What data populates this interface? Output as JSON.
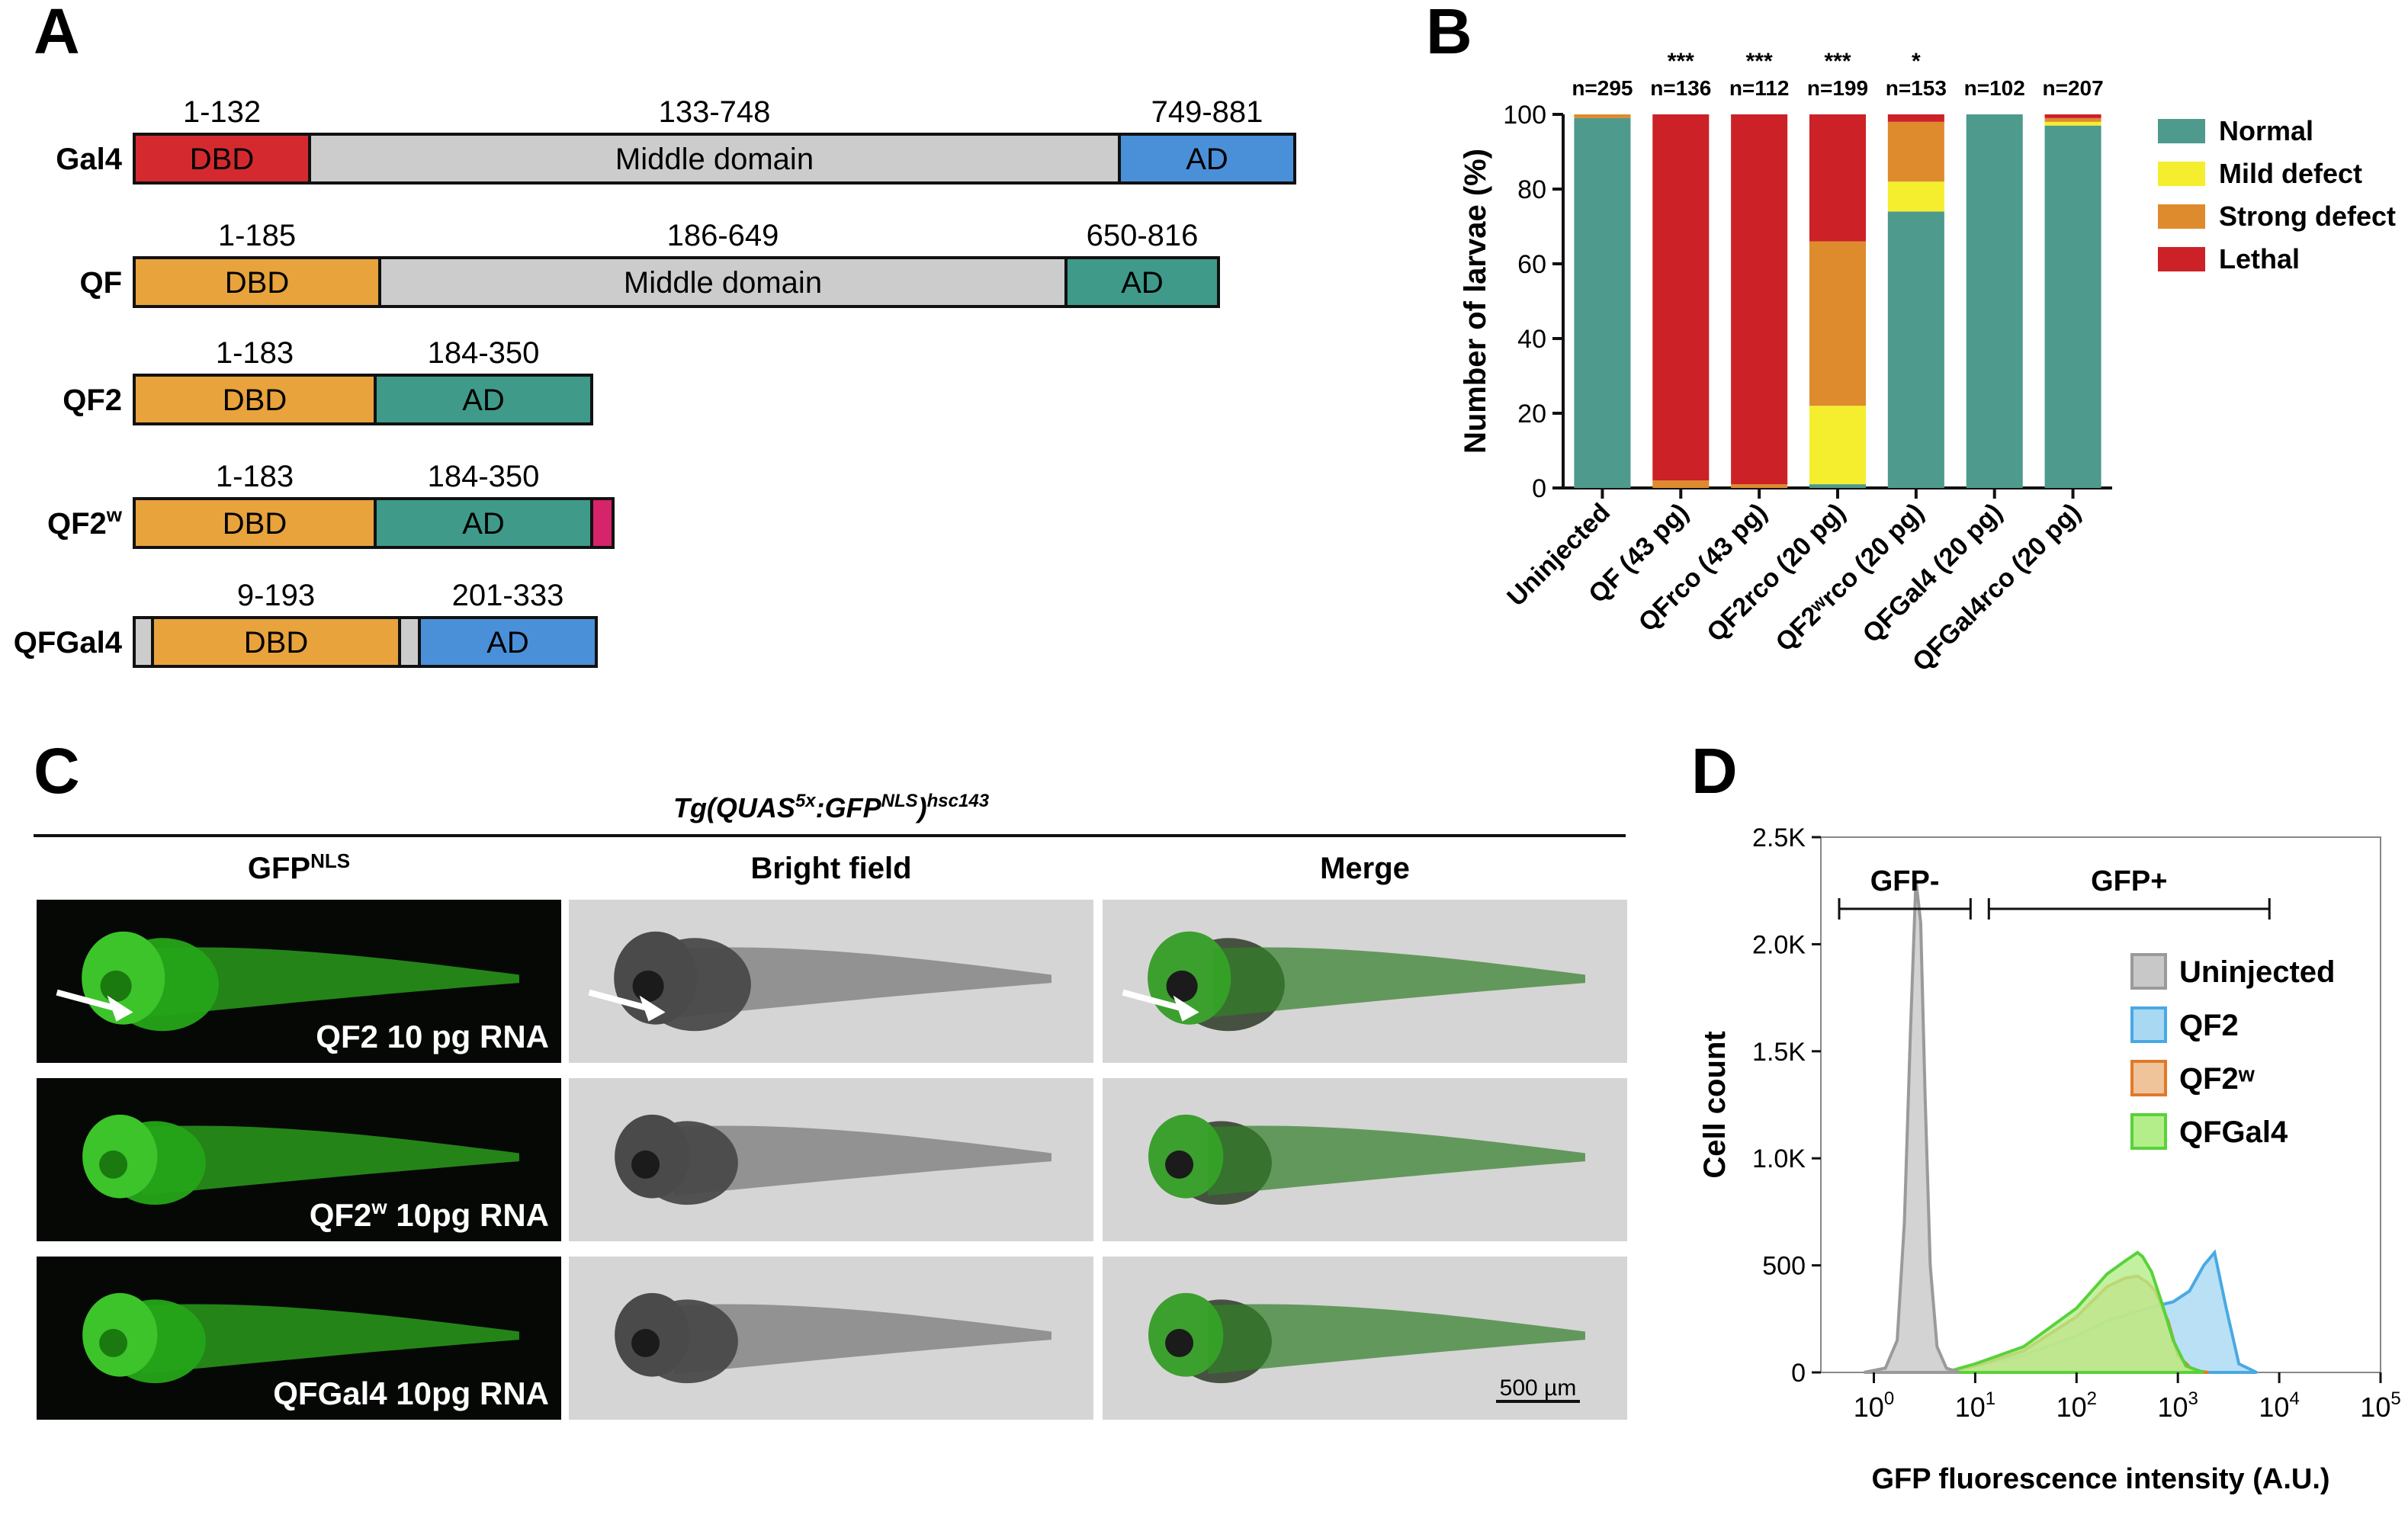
{
  "panels": {
    "a": "A",
    "b": "B",
    "c": "C",
    "d": "D"
  },
  "constructs": [
    {
      "name": "Gal4",
      "sup": "",
      "segments": [
        {
          "label": "DBD",
          "range": "1-132",
          "color": "#d42a2f"
        },
        {
          "label": "Middle domain",
          "range": "133-748",
          "color": "#cccccc"
        },
        {
          "label": "AD",
          "range": "749-881",
          "color": "#4a90d9"
        }
      ]
    },
    {
      "name": "QF",
      "sup": "",
      "segments": [
        {
          "label": "DBD",
          "range": "1-185",
          "color": "#e8a33d"
        },
        {
          "label": "Middle domain",
          "range": "186-649",
          "color": "#cccccc"
        },
        {
          "label": "AD",
          "range": "650-816",
          "color": "#3f9a8a"
        }
      ]
    },
    {
      "name": "QF2",
      "sup": "",
      "segments": [
        {
          "label": "DBD",
          "range": "1-183",
          "color": "#e8a33d"
        },
        {
          "label": "AD",
          "range": "184-350",
          "color": "#3f9a8a"
        }
      ]
    },
    {
      "name": "QF2",
      "sup": "w",
      "segments": [
        {
          "label": "DBD",
          "range": "1-183",
          "color": "#e8a33d"
        },
        {
          "label": "AD",
          "range": "184-350",
          "color": "#3f9a8a"
        },
        {
          "label": "",
          "range": "",
          "color": "#d6246a"
        }
      ]
    },
    {
      "name": "QFGal4",
      "sup": "",
      "segments": [
        {
          "label": "",
          "range": "",
          "color": "#cccccc"
        },
        {
          "label": "DBD",
          "range": "9-193",
          "color": "#e8a33d"
        },
        {
          "label": "",
          "range": "",
          "color": "#cccccc"
        },
        {
          "label": "AD",
          "range": "201-333",
          "color": "#4a90d9"
        }
      ]
    }
  ],
  "chart_data": [
    {
      "type": "bar",
      "stacked": true,
      "ylabel": "Number of larvae (%)",
      "ylim": [
        0,
        100
      ],
      "yticks": [
        0,
        20,
        40,
        60,
        80,
        100
      ],
      "categories": [
        "Uninjected",
        "QF (43 pg)",
        "QFrco (43 pg)",
        "QF2rco (20 pg)",
        "QF2ʷrco (20 pg)",
        "QFGal4 (20 pg)",
        "QFGal4rco (20 pg)"
      ],
      "n_labels": [
        "n=295",
        "n=136",
        "n=112",
        "n=199",
        "n=153",
        "n=102",
        "n=207"
      ],
      "significance": [
        "",
        "***",
        "***",
        "***",
        "*",
        "",
        ""
      ],
      "series": [
        {
          "name": "Normal",
          "color": "#4e9a8c",
          "values": [
            99,
            0,
            0,
            1,
            74,
            100,
            97
          ]
        },
        {
          "name": "Mild defect",
          "color": "#f5ee2e",
          "values": [
            0,
            0,
            0,
            21,
            8,
            0,
            1
          ]
        },
        {
          "name": "Strong defect",
          "color": "#de8b2e",
          "values": [
            1,
            2,
            1,
            44,
            16,
            0,
            1
          ]
        },
        {
          "name": "Lethal",
          "color": "#cc2127",
          "values": [
            0,
            98,
            99,
            34,
            2,
            0,
            1
          ]
        }
      ],
      "legend": "right"
    },
    {
      "type": "area",
      "xlabel": "GFP fluorescence intensity (A.U.)",
      "ylabel": "Cell count",
      "xscale": "log",
      "xlim": [
        0.3,
        100000
      ],
      "ylim": [
        0,
        2500
      ],
      "yticks": [
        "0",
        "500",
        "1.0K",
        "1.5K",
        "2.0K",
        "2.5K"
      ],
      "ytick_values": [
        0,
        500,
        1000,
        1500,
        2000,
        2500
      ],
      "gates": [
        {
          "label": "GFP-",
          "range": [
            0.3,
            9
          ]
        },
        {
          "label": "GFP+",
          "range": [
            9,
            8000
          ]
        }
      ],
      "series": [
        {
          "name": "Uninjected",
          "color": "#9a9a9a",
          "fill": "#c8c8c8",
          "x": [
            0.8,
            1.3,
            1.7,
            2.0,
            2.3,
            2.6,
            2.9,
            3.2,
            3.6,
            4.2,
            5.2,
            7
          ],
          "y": [
            0,
            20,
            150,
            700,
            1600,
            2300,
            2100,
            1300,
            500,
            120,
            20,
            0
          ]
        },
        {
          "name": "QF2",
          "color": "#49a9e3",
          "fill": "#a9d8f3",
          "x": [
            5,
            10,
            30,
            100,
            200,
            500,
            900,
            1300,
            1800,
            2300,
            3000,
            4000,
            6000
          ],
          "y": [
            0,
            30,
            80,
            170,
            240,
            300,
            330,
            380,
            500,
            560,
            300,
            40,
            0
          ]
        },
        {
          "name": "QF2ʷ",
          "color": "#e07a2b",
          "fill": "#f0c49a",
          "x": [
            5,
            10,
            30,
            100,
            200,
            300,
            400,
            500,
            600,
            800,
            1000,
            1400,
            2000
          ],
          "y": [
            0,
            30,
            100,
            260,
            400,
            440,
            450,
            420,
            380,
            240,
            80,
            10,
            0
          ]
        },
        {
          "name": "QFGal4",
          "color": "#58d23a",
          "fill": "#b4ee8a",
          "x": [
            5,
            10,
            30,
            100,
            200,
            300,
            400,
            450,
            550,
            700,
            900,
            1200,
            1800
          ],
          "y": [
            0,
            40,
            120,
            300,
            460,
            520,
            560,
            540,
            470,
            320,
            150,
            30,
            0
          ]
        }
      ],
      "legend": "right"
    }
  ],
  "figC": {
    "title_main": "Tg(QUAS",
    "title_sup1": "5x",
    "title_mid": ":GFP",
    "title_sup2": "NLS",
    "title_end": ")",
    "title_sup3": "hsc143",
    "columns": [
      {
        "label": "GFP",
        "sup": "NLS"
      },
      {
        "label": "Bright field",
        "sup": ""
      },
      {
        "label": "Merge",
        "sup": ""
      }
    ],
    "rows": [
      {
        "pre": "QF2",
        "sup": "",
        "post": " 10 pg RNA"
      },
      {
        "pre": "QF2",
        "sup": "w",
        "post": " 10pg RNA"
      },
      {
        "pre": "QFGal4",
        "sup": "",
        "post": " 10pg RNA"
      }
    ],
    "scalebar": "500 µm"
  }
}
